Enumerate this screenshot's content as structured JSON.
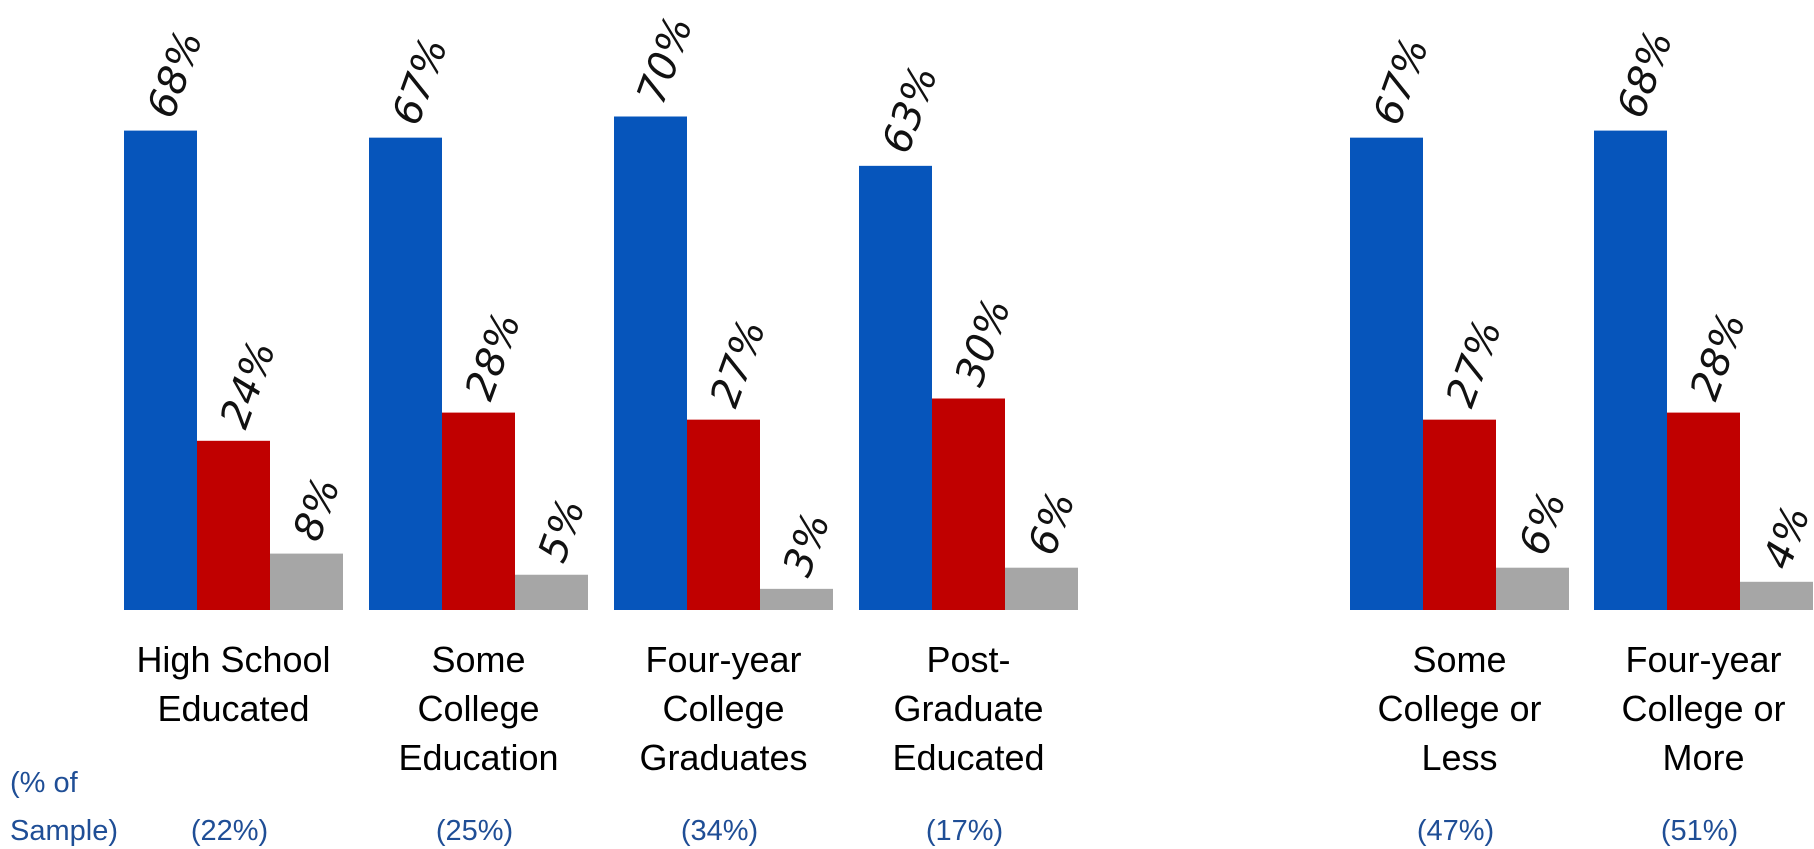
{
  "chart_data": {
    "type": "bar",
    "colors": [
      "#0655bb",
      "#c00000",
      "#a6a6a6"
    ],
    "sample_label": [
      "(% of",
      "Sample)"
    ],
    "groups": [
      {
        "label": [
          "High School",
          "Educated"
        ],
        "sample": "(22%)",
        "values": [
          68,
          24,
          8
        ],
        "value_labels": [
          "68%",
          "24%",
          "8%"
        ]
      },
      {
        "label": [
          "Some",
          "College",
          "Education"
        ],
        "sample": "(25%)",
        "values": [
          67,
          28,
          5
        ],
        "value_labels": [
          "67%",
          "28%",
          "5%"
        ]
      },
      {
        "label": [
          "Four-year",
          "College",
          "Graduates"
        ],
        "sample": "(34%)",
        "values": [
          70,
          27,
          3
        ],
        "value_labels": [
          "70%",
          "27%",
          "3%"
        ]
      },
      {
        "label": [
          "Post-",
          "Graduate",
          "Educated"
        ],
        "sample": "(17%)",
        "values": [
          63,
          30,
          6
        ],
        "value_labels": [
          "63%",
          "30%",
          "6%"
        ]
      },
      {
        "label": [
          "Some",
          "College or",
          "Less"
        ],
        "sample": "(47%)",
        "values": [
          67,
          27,
          6
        ],
        "value_labels": [
          "67%",
          "27%",
          "6%"
        ]
      },
      {
        "label": [
          "Four-year",
          "College or",
          "More"
        ],
        "sample": "(51%)",
        "values": [
          68,
          28,
          4
        ],
        "value_labels": [
          "68%",
          "28%",
          "4%"
        ]
      }
    ],
    "ylim": [
      0,
      100
    ],
    "grid": false,
    "legend": "none"
  }
}
